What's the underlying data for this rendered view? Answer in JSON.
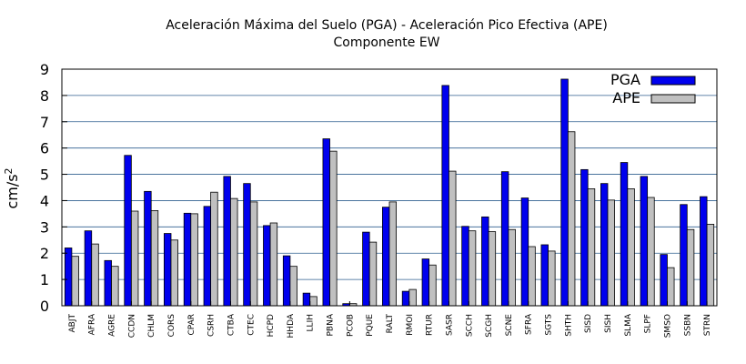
{
  "chart_data": {
    "type": "bar",
    "title": "Aceleración Máxima del Suelo (PGA) -  Aceleración Pico Efectiva (APE)",
    "subtitle": "Componente EW",
    "ylabel_base": "cm/s",
    "ylabel_sup": "2",
    "ylim": [
      0,
      9
    ],
    "yticks": [
      0,
      1,
      2,
      3,
      4,
      5,
      6,
      7,
      8,
      9
    ],
    "grid": true,
    "legend_position": "top-right",
    "categories": [
      "ABJT",
      "AFRA",
      "AGRE",
      "CCDN",
      "CHLM",
      "CORS",
      "CPAR",
      "CSRH",
      "CTBA",
      "CTEC",
      "HCPD",
      "HHDA",
      "LLIH",
      "PBNA",
      "PCOB",
      "PQUE",
      "RALT",
      "RMOI",
      "RTUR",
      "SASR",
      "SCCH",
      "SCGH",
      "SCNE",
      "SFRA",
      "SGTS",
      "SHTH",
      "SISD",
      "SISH",
      "SLMA",
      "SLPF",
      "SMSO",
      "SSBN",
      "STRN"
    ],
    "series": [
      {
        "name": "PGA",
        "color": "#0000ee",
        "values": [
          2.2,
          2.85,
          1.72,
          5.72,
          4.35,
          2.75,
          3.52,
          3.78,
          4.92,
          4.65,
          3.05,
          1.9,
          0.48,
          6.35,
          0.08,
          2.8,
          3.75,
          0.55,
          1.78,
          8.38,
          3.02,
          3.38,
          5.1,
          4.1,
          2.32,
          8.62,
          5.18,
          4.65,
          5.45,
          4.92,
          1.95,
          3.85,
          4.15
        ]
      },
      {
        "name": "APE",
        "color": "#c0c0c0",
        "values": [
          1.88,
          2.35,
          1.5,
          3.6,
          3.62,
          2.5,
          3.5,
          4.32,
          4.08,
          3.95,
          3.15,
          1.5,
          0.35,
          5.88,
          0.08,
          2.42,
          3.95,
          0.62,
          1.55,
          5.12,
          2.85,
          2.82,
          2.9,
          2.25,
          2.08,
          6.62,
          4.45,
          4.02,
          4.45,
          4.12,
          1.45,
          2.9,
          3.1
        ]
      }
    ]
  }
}
